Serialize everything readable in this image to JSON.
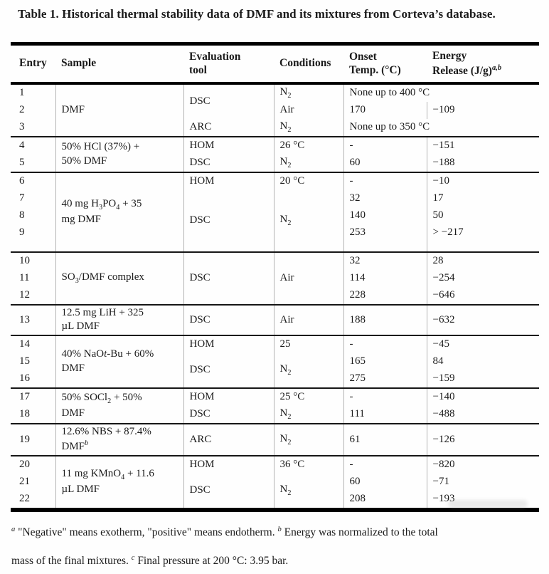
{
  "title": "Table 1. Historical thermal stability data of DMF and its mixtures from Corteva’s database.",
  "table": {
    "headers": {
      "entry": "Entry",
      "sample": "Sample",
      "tool": "Evaluation\ntool",
      "conditions": "Conditions",
      "onset": "Onset\nTemp. (°C)",
      "energy": "Energy\nRelease (J/g)^a,b^"
    },
    "groups": [
      {
        "sample": "DMF",
        "rows": [
          {
            "entry": "1",
            "tool": "DSC",
            "cond": "N~2~",
            "onset_span": "None up to 400 °C"
          },
          {
            "entry": "2",
            "cond": "Air",
            "onset": "170",
            "energy": "−109"
          },
          {
            "entry": "3",
            "tool": "ARC",
            "cond": "N~2~",
            "onset_span": "None up to 350 °C"
          }
        ]
      },
      {
        "sample": "50% HCl (37%) +\n50% DMF",
        "rows": [
          {
            "entry": "4",
            "tool": "HOM",
            "cond": "26 °C",
            "onset": "-",
            "energy": "−151"
          },
          {
            "entry": "5",
            "tool": "DSC",
            "cond": "N~2~",
            "onset": "60",
            "energy": "−188"
          }
        ]
      },
      {
        "sample": "40 mg H~3~PO~4~ + 35\nmg DMF",
        "rows": [
          {
            "entry": "6",
            "tool": "HOM",
            "cond": "20 °C",
            "onset": "-",
            "energy": "−10"
          },
          {
            "entry": "7",
            "tool": "DSC",
            "cond": "N~2~",
            "onset": "32",
            "energy": "17"
          },
          {
            "entry": "8",
            "onset": "140",
            "energy": "50"
          },
          {
            "entry": "9",
            "onset": "253",
            "energy": "> −217"
          }
        ]
      },
      {
        "sample": "SO~3~/DMF complex",
        "rows": [
          {
            "entry": "10",
            "tool": "DSC",
            "cond": "Air",
            "onset": "32",
            "energy": "28"
          },
          {
            "entry": "11",
            "onset": "114",
            "energy": "−254"
          },
          {
            "entry": "12",
            "onset": "228",
            "energy": "−646"
          }
        ]
      },
      {
        "sample": "12.5 mg LiH + 325\nµL DMF",
        "rows": [
          {
            "entry": "13",
            "tool": "DSC",
            "cond": "Air",
            "onset": "188",
            "energy": "−632"
          }
        ]
      },
      {
        "sample": "40% NaO*t*-Bu + 60%\nDMF",
        "rows": [
          {
            "entry": "14",
            "tool": "HOM",
            "cond": "25",
            "onset": "-",
            "energy": "−45"
          },
          {
            "entry": "15",
            "tool": "DSC",
            "cond": "N~2~",
            "onset": "165",
            "energy": "84"
          },
          {
            "entry": "16",
            "onset": "275",
            "energy": "−159"
          }
        ]
      },
      {
        "sample": "50% SOCl~2~ + 50%\nDMF",
        "rows": [
          {
            "entry": "17",
            "tool": "HOM",
            "cond": "25 °C",
            "onset": "-",
            "energy": "−140"
          },
          {
            "entry": "18",
            "tool": "DSC",
            "cond": "N~2~",
            "onset": "111",
            "energy": "−488"
          }
        ]
      },
      {
        "sample": "12.6% NBS + 87.4%\nDMF^b^",
        "rows": [
          {
            "entry": "19",
            "tool": "ARC",
            "cond": "N~2~",
            "onset": "61",
            "energy": "−126"
          }
        ]
      },
      {
        "sample": "11 mg KMnO~4~ + 11.6\nµL DMF",
        "rows": [
          {
            "entry": "20",
            "tool": "HOM",
            "cond": "36 °C",
            "onset": "-",
            "energy": "−820"
          },
          {
            "entry": "21",
            "tool": "DSC",
            "cond": "N~2~",
            "onset": "60",
            "energy": "−71"
          },
          {
            "entry": "22",
            "onset": "208",
            "energy": "−193"
          }
        ]
      }
    ]
  },
  "footnote": "^a^ \"Negative\" means exotherm, \"positive\" means endotherm. ^b^ Energy was normalized to the total\nmass of the final mixtures. ^c^ Final pressure at 200 °C: 3.95 bar."
}
